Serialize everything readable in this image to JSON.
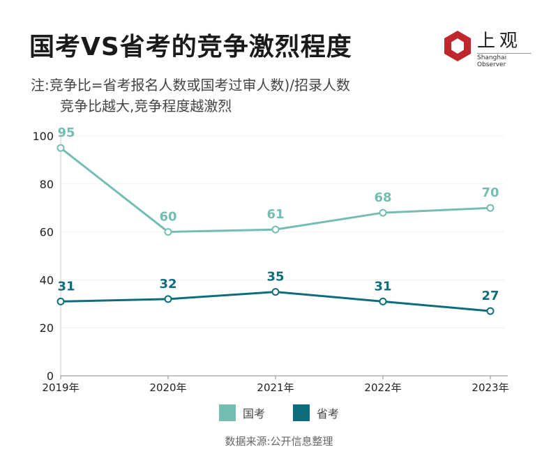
{
  "title": "国考VS省考的竞争激烈程度",
  "notes": [
    "注:竞争比=省考报名人数或国考过审人数)/招录人数",
    "竞争比越大,竞争程度越激烈"
  ],
  "logo": {
    "cn": "上观",
    "en": "Shanghai Observer",
    "color": "#c0272d"
  },
  "source": "数据来源:公开信息整理",
  "chart_data": {
    "type": "line",
    "categories": [
      "2019年",
      "2020年",
      "2021年",
      "2022年",
      "2023年"
    ],
    "ylim": [
      0,
      100
    ],
    "yticks": [
      0,
      20,
      40,
      60,
      80,
      100
    ],
    "grid": true,
    "legend_placement": "bottom",
    "series": [
      {
        "name": "国考",
        "values": [
          95,
          60,
          61,
          68,
          70
        ],
        "color": "#74bdb2"
      },
      {
        "name": "省考",
        "values": [
          31,
          32,
          35,
          31,
          27
        ],
        "color": "#0e6d7c"
      }
    ]
  }
}
